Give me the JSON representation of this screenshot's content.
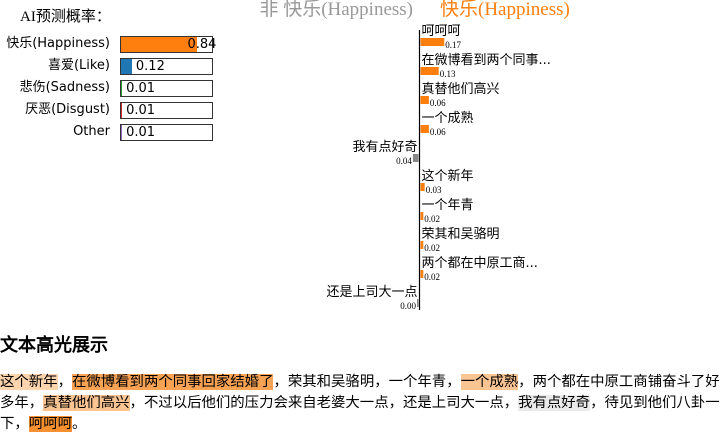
{
  "probabilities": {
    "title": "AI预测概率：",
    "items": [
      {
        "label": "快乐(Happiness)",
        "value_text": "0.84",
        "value": 0.84,
        "color": "#ff7f0e"
      },
      {
        "label": "喜爱(Like)",
        "value_text": "0.12",
        "value": 0.12,
        "color": "#1f77b4"
      },
      {
        "label": "悲伤(Sadness)",
        "value_text": "0.01",
        "value": 0.01,
        "color": "#2ca02c"
      },
      {
        "label": "厌恶(Disgust)",
        "value_text": "0.01",
        "value": 0.01,
        "color": "#d62728"
      },
      {
        "label": "Other",
        "value_text": "0.01",
        "value": 0.01,
        "color": "#9467bd"
      }
    ]
  },
  "chart_data": {
    "type": "bar",
    "orientation": "horizontal",
    "negative_header": "非 快乐(Happiness)",
    "positive_header": "快乐(Happiness)",
    "positive_color": "#ff7f0e",
    "negative_color": "#888888",
    "max_value": 0.17,
    "bars": [
      {
        "label": "呵呵呵",
        "value": 0.17,
        "value_text": "0.17",
        "side": "positive"
      },
      {
        "label": "在微博看到两个同事...",
        "value": 0.13,
        "value_text": "0.13",
        "side": "positive"
      },
      {
        "label": "真替他们高兴",
        "value": 0.06,
        "value_text": "0.06",
        "side": "positive"
      },
      {
        "label": "一个成熟",
        "value": 0.06,
        "value_text": "0.06",
        "side": "positive"
      },
      {
        "label": "我有点好奇",
        "value": 0.04,
        "value_text": "0.04",
        "side": "negative"
      },
      {
        "label": "这个新年",
        "value": 0.03,
        "value_text": "0.03",
        "side": "positive"
      },
      {
        "label": "一个年青",
        "value": 0.02,
        "value_text": "0.02",
        "side": "positive"
      },
      {
        "label": "荣其和吴骆明",
        "value": 0.02,
        "value_text": "0.02",
        "side": "positive"
      },
      {
        "label": "两个都在中原工商...",
        "value": 0.02,
        "value_text": "0.02",
        "side": "positive"
      },
      {
        "label": "还是上司大一点",
        "value": 0.0,
        "value_text": "0.00",
        "side": "negative"
      }
    ]
  },
  "highlight": {
    "title": "文本高光展示",
    "segments": [
      {
        "text": "这个新年",
        "weight": 0.03,
        "side": "positive"
      },
      {
        "text": "，",
        "weight": 0,
        "side": "none"
      },
      {
        "text": "在微博看到两个同事回家结婚了",
        "weight": 0.13,
        "side": "positive"
      },
      {
        "text": "，荣其和吴骆明，",
        "weight": 0.02,
        "side": "positive"
      },
      {
        "text": "一个年青",
        "weight": 0.02,
        "side": "positive"
      },
      {
        "text": "，",
        "weight": 0,
        "side": "none"
      },
      {
        "text": "一个成熟",
        "weight": 0.06,
        "side": "positive"
      },
      {
        "text": "，两个都在中原工商铺奋斗了好多年，",
        "weight": 0.02,
        "side": "positive"
      },
      {
        "text": "真替他们高兴",
        "weight": 0.06,
        "side": "positive"
      },
      {
        "text": "，不过以后他们的压力会来自老婆大一点，还是上司大一点，",
        "weight": 0.0,
        "side": "negative"
      },
      {
        "text": "我有点好奇",
        "weight": 0.04,
        "side": "negative"
      },
      {
        "text": "，待见到他们八卦一下，",
        "weight": 0,
        "side": "none"
      },
      {
        "text": "呵呵呵",
        "weight": 0.17,
        "side": "positive"
      },
      {
        "text": "。",
        "weight": 0,
        "side": "none"
      }
    ]
  }
}
